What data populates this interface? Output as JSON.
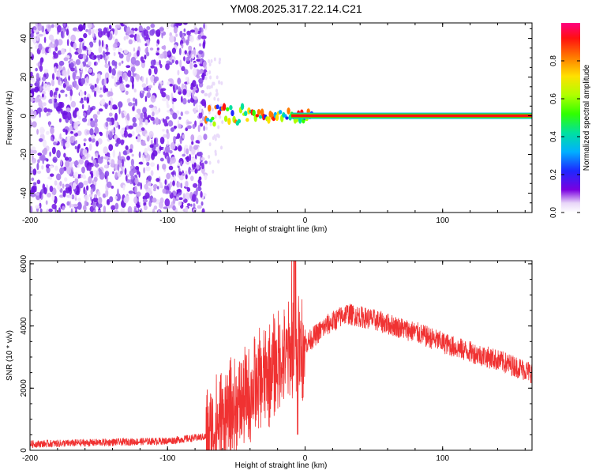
{
  "title": "YM08.2025.317.22.14.C21",
  "chart_data": [
    {
      "type": "heatmap",
      "xlabel": "Height of straight line (km)",
      "ylabel": "Frequency (Hz)",
      "xlim": [
        -200,
        165
      ],
      "ylim": [
        -50,
        48
      ],
      "xticks": [
        -200,
        -100,
        0,
        100
      ],
      "yticks": [
        -40,
        -20,
        0,
        20,
        40
      ],
      "description_regions": {
        "noise_region_x": [
          -200,
          -72
        ],
        "signal_start_x": -72,
        "signal_frequency_hz": 0
      }
    },
    {
      "type": "line",
      "xlabel": "Height of straight line (km)",
      "ylabel": "SNR (10 * v/v)",
      "xlim": [
        -200,
        165
      ],
      "ylim": [
        0,
        6100
      ],
      "xticks": [
        -200,
        -100,
        0,
        100
      ],
      "yticks": [
        0,
        2000,
        4000,
        6000
      ],
      "series_color": "#f03232",
      "keypoints": [
        {
          "x": -200,
          "y": 200
        },
        {
          "x": -150,
          "y": 250
        },
        {
          "x": -100,
          "y": 300
        },
        {
          "x": -70,
          "y": 450
        },
        {
          "x": -60,
          "y": 1000
        },
        {
          "x": -45,
          "y": 1600
        },
        {
          "x": -30,
          "y": 2300
        },
        {
          "x": -15,
          "y": 3000
        },
        {
          "x": 0,
          "y": 3400
        },
        {
          "x": 15,
          "y": 4000
        },
        {
          "x": 30,
          "y": 4400
        },
        {
          "x": 50,
          "y": 4200
        },
        {
          "x": 80,
          "y": 3800
        },
        {
          "x": 110,
          "y": 3300
        },
        {
          "x": 140,
          "y": 2900
        },
        {
          "x": 165,
          "y": 2500
        }
      ]
    }
  ],
  "colorbar": {
    "label": "Normalized spectral amplitude",
    "ticks": [
      0.0,
      0.2,
      0.4,
      0.6,
      0.8
    ],
    "tick_labels": [
      "0.0",
      "0.2",
      "0.4",
      "0.6",
      "0.8"
    ],
    "range": [
      0,
      1
    ]
  }
}
